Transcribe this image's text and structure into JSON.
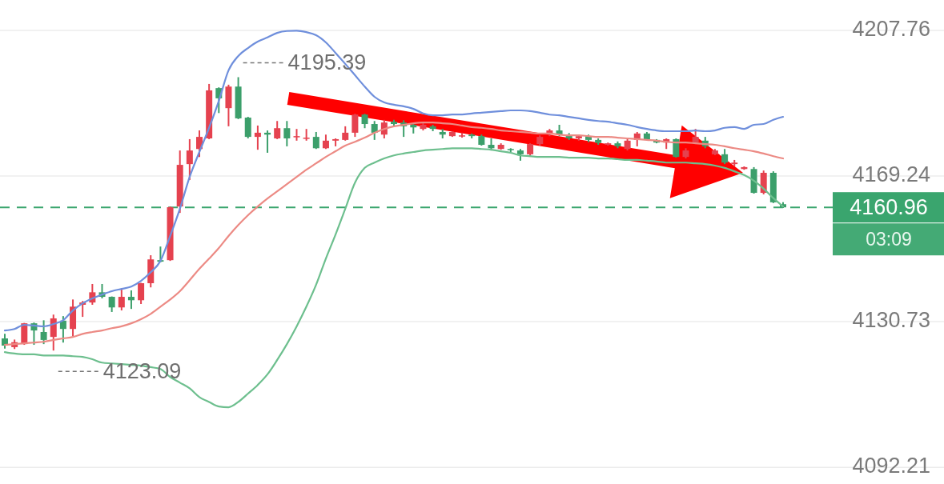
{
  "chart_data": {
    "type": "candlestick",
    "categories": [
      null,
      null,
      null,
      null,
      null,
      null,
      null,
      null,
      null,
      null,
      null,
      null,
      null,
      null,
      null,
      null,
      null,
      null,
      null,
      null,
      null,
      null,
      null,
      null,
      null,
      null,
      null,
      null,
      null,
      null,
      null,
      null,
      null,
      null,
      null,
      null,
      null,
      null,
      null,
      null,
      null,
      null,
      null,
      null,
      null,
      null,
      null,
      null,
      null,
      null,
      null,
      null,
      null,
      null,
      null,
      null,
      null,
      null,
      null,
      null,
      null,
      null,
      null,
      null,
      null,
      null,
      null,
      null,
      null,
      null,
      null,
      null,
      null,
      null,
      null,
      null,
      null,
      null,
      null,
      null,
      null
    ],
    "ohlc": [
      [
        4126.3,
        4127.5,
        4123.6,
        4124.4
      ],
      [
        4124.0,
        4126.0,
        4123.5,
        4125.3
      ],
      [
        4124.8,
        4130.4,
        4124.6,
        4130.3
      ],
      [
        4130.3,
        4130.5,
        4124.6,
        4128.4
      ],
      [
        4128.0,
        4131.1,
        4124.8,
        4125.9
      ],
      [
        4126.7,
        4132.6,
        4123.09,
        4131.6
      ],
      [
        4131.0,
        4132.2,
        4125.2,
        4128.8
      ],
      [
        4128.8,
        4136.6,
        4126.9,
        4134.7
      ],
      [
        4135.2,
        4136.2,
        4132.0,
        4135.8
      ],
      [
        4135.8,
        4140.7,
        4135.2,
        4138.5
      ],
      [
        4138.5,
        4140.7,
        4136.9,
        4137.3
      ],
      [
        4137.3,
        4137.4,
        4133.3,
        4134.5
      ],
      [
        4134.5,
        4139.4,
        4133.7,
        4137.3
      ],
      [
        4137.3,
        4139.0,
        4134.1,
        4136.4
      ],
      [
        4136.4,
        4141.0,
        4135.4,
        4140.9
      ],
      [
        4140.9,
        4148.3,
        4139.8,
        4147.2
      ],
      [
        4147.0,
        4150.6,
        4146.4,
        4146.6
      ],
      [
        4147.0,
        4161.2,
        4146.8,
        4161.0
      ],
      [
        4161.2,
        4176.0,
        4159.5,
        4172.2
      ],
      [
        4172.4,
        4179.0,
        4168.2,
        4176.0
      ],
      [
        4176.4,
        4181.3,
        4174.3,
        4179.6
      ],
      [
        4179.2,
        4193.6,
        4179.0,
        4191.9
      ],
      [
        4192.5,
        4192.7,
        4185.9,
        4189.8
      ],
      [
        4187.2,
        4193.4,
        4182.4,
        4192.9
      ],
      [
        4192.9,
        4195.39,
        4184.3,
        4184.5
      ],
      [
        4184.7,
        4184.9,
        4179.2,
        4179.6
      ],
      [
        4179.6,
        4182.6,
        4176.2,
        4180.7
      ],
      [
        4180.7,
        4181.3,
        4175.4,
        4180.2
      ],
      [
        4179.2,
        4183.8,
        4179.0,
        4181.9
      ],
      [
        4181.9,
        4183.8,
        4177.1,
        4179.2
      ],
      [
        4179.6,
        4181.7,
        4178.6,
        4179.8
      ],
      [
        4179.2,
        4181.7,
        4178.6,
        4179.4
      ],
      [
        4179.6,
        4180.9,
        4176.4,
        4176.6
      ],
      [
        4176.6,
        4180.2,
        4176.4,
        4178.6
      ],
      [
        4178.6,
        4179.2,
        4177.1,
        4179.0
      ],
      [
        4178.8,
        4182.4,
        4178.6,
        4180.7
      ],
      [
        4180.7,
        4185.7,
        4179.6,
        4185.5
      ],
      [
        4185.5,
        4185.7,
        4181.9,
        4183.0
      ],
      [
        4183.0,
        4183.8,
        4178.8,
        4180.7
      ],
      [
        4180.2,
        4184.1,
        4179.2,
        4183.4
      ],
      [
        4183.6,
        4184.1,
        4182.4,
        4183.0
      ],
      [
        4183.4,
        4184.0,
        4179.6,
        4182.4
      ],
      [
        4182.8,
        4183.0,
        4180.5,
        4182.1
      ],
      [
        4181.7,
        4183.2,
        4181.3,
        4182.8
      ],
      [
        4182.4,
        4182.8,
        4181.1,
        4181.7
      ],
      [
        4180.9,
        4181.7,
        4179.2,
        4180.2
      ],
      [
        4179.8,
        4181.1,
        4179.6,
        4180.9
      ],
      [
        4179.8,
        4180.7,
        4179.4,
        4180.0
      ],
      [
        4180.2,
        4180.5,
        4179.2,
        4179.8
      ],
      [
        4179.8,
        4180.2,
        4177.3,
        4177.5
      ],
      [
        4177.5,
        4179.2,
        4176.0,
        4176.6
      ],
      [
        4176.4,
        4177.9,
        4176.2,
        4177.5
      ],
      [
        4176.4,
        4176.6,
        4175.6,
        4176.2
      ],
      [
        4176.0,
        4176.4,
        4173.3,
        4175.0
      ],
      [
        4175.0,
        4177.9,
        4174.3,
        4177.7
      ],
      [
        4177.7,
        4180.0,
        4177.3,
        4179.6
      ],
      [
        4180.2,
        4181.7,
        4179.8,
        4181.3
      ],
      [
        4181.3,
        4182.8,
        4179.8,
        4180.2
      ],
      [
        4180.2,
        4180.6,
        4178.8,
        4179.2
      ],
      [
        4179.2,
        4180.2,
        4178.6,
        4179.8
      ],
      [
        4179.8,
        4180.2,
        4178.2,
        4178.8
      ],
      [
        4178.8,
        4179.2,
        4177.5,
        4178.0
      ],
      [
        4177.5,
        4178.1,
        4177.3,
        4177.9
      ],
      [
        4177.9,
        4178.4,
        4176.6,
        4177.1
      ],
      [
        4176.4,
        4179.0,
        4176.0,
        4178.6
      ],
      [
        4178.8,
        4180.9,
        4177.1,
        4180.5
      ],
      [
        4180.5,
        4180.9,
        4178.6,
        4178.8
      ],
      [
        4178.8,
        4179.0,
        4177.9,
        4178.1
      ],
      [
        4178.1,
        4179.2,
        4176.4,
        4179.0
      ],
      [
        4179.0,
        4179.2,
        4174.1,
        4174.3
      ],
      [
        4174.3,
        4176.6,
        4173.9,
        4176.0
      ],
      [
        4178.1,
        4181.7,
        4177.9,
        4179.6
      ],
      [
        4178.6,
        4179.6,
        4176.6,
        4177.1
      ],
      [
        4175.0,
        4176.4,
        4174.8,
        4176.0
      ],
      [
        4175.0,
        4176.4,
        4172.4,
        4172.8
      ],
      [
        4172.4,
        4173.5,
        4171.8,
        4172.8
      ],
      [
        4171.1,
        4171.8,
        4170.9,
        4171.6
      ],
      [
        4171.1,
        4171.6,
        4164.6,
        4164.8
      ],
      [
        4164.8,
        4170.7,
        4164.4,
        4170.1
      ],
      [
        4170.1,
        4170.5,
        4162.1,
        4162.3
      ],
      [
        4161.8,
        4162.3,
        4160.8,
        4160.96
      ]
    ],
    "colors": [
      "#3c9f6b",
      "#e5424f",
      "#e5424f",
      "#3c9f6b",
      "#3c9f6b",
      "#e5424f",
      "#3c9f6b",
      "#e5424f",
      "#e5424f",
      "#e5424f",
      "#3c9f6b",
      "#3c9f6b",
      "#e5424f",
      "#3c9f6b",
      "#e5424f",
      "#e5424f",
      "#3c9f6b",
      "#e5424f",
      "#e5424f",
      "#e5424f",
      "#e5424f",
      "#e5424f",
      "#3c9f6b",
      "#e5424f",
      "#3c9f6b",
      "#3c9f6b",
      "#e5424f",
      "#3c9f6b",
      "#e5424f",
      "#3c9f6b",
      "#e5424f",
      "#e5424f",
      "#3c9f6b",
      "#e5424f",
      "#e5424f",
      "#e5424f",
      "#e5424f",
      "#3c9f6b",
      "#3c9f6b",
      "#e5424f",
      "#3c9f6b",
      "#3c9f6b",
      "#3c9f6b",
      "#e5424f",
      "#3c9f6b",
      "#3c9f6b",
      "#e5424f",
      "#e5424f",
      "#3c9f6b",
      "#3c9f6b",
      "#3c9f6b",
      "#e5424f",
      "#3c9f6b",
      "#3c9f6b",
      "#e5424f",
      "#e5424f",
      "#e5424f",
      "#3c9f6b",
      "#3c9f6b",
      "#e5424f",
      "#3c9f6b",
      "#3c9f6b",
      "#e5424f",
      "#3c9f6b",
      "#e5424f",
      "#e5424f",
      "#3c9f6b",
      "#3c9f6b",
      "#e5424f",
      "#3c9f6b",
      "#e5424f",
      "#e5424f",
      "#3c9f6b",
      "#e5424f",
      "#3c9f6b",
      "#e5424f",
      "#e5424f",
      "#3c9f6b",
      "#e5424f",
      "#3c9f6b",
      "#3c9f6b"
    ],
    "series": [
      {
        "type": "line",
        "color": "#6f8fdc",
        "values": [
          4128.4,
          4128.8,
          4129.9,
          4129.7,
          4129.5,
          4130.1,
          4131.1,
          4133.7,
          4135.6,
          4136.9,
          4137.9,
          4138.8,
          4139.4,
          4140.0,
          4141.5,
          4143.8,
          4146.8,
          4153.4,
          4160.6,
          4169.0,
          4175.6,
          4182.0,
          4189.1,
          4197.2,
          4201.0,
          4203.1,
          4204.8,
          4205.9,
          4207.1,
          4207.6,
          4207.7,
          4207.3,
          4206.5,
          4204.6,
          4201.8,
          4198.9,
          4195.9,
          4192.9,
          4190.2,
          4188.7,
          4188.1,
          4187.7,
          4187.0,
          4185.8,
          4185.3,
          4185.3,
          4185.5,
          4185.5,
          4185.8,
          4186.0,
          4186.2,
          4186.4,
          4186.6,
          4186.6,
          4186.4,
          4186.0,
          4185.5,
          4185.3,
          4184.9,
          4184.5,
          4184.1,
          4183.8,
          4183.6,
          4183.2,
          4182.8,
          4182.2,
          4181.7,
          4181.3,
          4181.1,
          4181.1,
          4181.1,
          4181.3,
          4181.1,
          4181.3,
          4182.0,
          4182.2,
          4181.7,
          4182.8,
          4183.0,
          4184.1,
          4184.9
        ]
      },
      {
        "type": "line",
        "color": "#ec8a84",
        "values": [
          4124.6,
          4124.8,
          4125.0,
          4125.2,
          4125.4,
          4125.9,
          4126.3,
          4126.7,
          4127.5,
          4128.0,
          4128.4,
          4129.0,
          4129.5,
          4130.3,
          4131.4,
          4132.8,
          4134.7,
          4136.6,
          4138.8,
          4141.7,
          4144.7,
          4147.4,
          4150.2,
          4153.4,
          4156.3,
          4158.9,
          4161.2,
          4163.3,
          4165.2,
          4167.1,
          4169.0,
          4170.9,
          4172.6,
          4174.3,
          4175.8,
          4177.3,
          4178.3,
          4179.4,
          4180.7,
          4181.7,
          4182.4,
          4182.8,
          4183.2,
          4183.4,
          4183.4,
          4183.2,
          4183.0,
          4182.6,
          4182.2,
          4182.0,
          4181.7,
          4181.3,
          4181.1,
          4180.9,
          4180.7,
          4180.5,
          4180.5,
          4180.2,
          4180.0,
          4180.0,
          4179.8,
          4179.6,
          4179.6,
          4179.4,
          4179.2,
          4179.0,
          4178.8,
          4178.6,
          4178.3,
          4178.1,
          4178.1,
          4177.9,
          4177.7,
          4177.5,
          4177.1,
          4176.6,
          4176.2,
          4175.8,
          4175.2,
          4174.5,
          4173.9
        ]
      },
      {
        "type": "line",
        "color": "#6dbf8e",
        "values": [
          4122.7,
          4122.3,
          4122.1,
          4122.1,
          4121.8,
          4121.8,
          4121.8,
          4121.6,
          4121.4,
          4120.8,
          4119.9,
          4119.7,
          4119.5,
          4119.3,
          4119.1,
          4118.7,
          4118.2,
          4116.1,
          4114.6,
          4113.1,
          4110.8,
          4109.5,
          4108.3,
          4108.1,
          4109.5,
          4111.7,
          4114.0,
          4116.8,
          4120.6,
          4124.8,
          4129.5,
          4134.7,
          4140.5,
          4147.4,
          4153.8,
          4160.6,
          4167.5,
          4171.4,
          4172.8,
          4173.9,
          4174.7,
          4175.2,
          4175.6,
          4176.0,
          4176.2,
          4176.4,
          4176.6,
          4176.6,
          4176.6,
          4176.4,
          4176.2,
          4175.8,
          4175.4,
          4174.7,
          4174.5,
          4174.3,
          4174.3,
          4174.3,
          4174.1,
          4174.1,
          4174.1,
          4173.9,
          4173.9,
          4173.7,
          4173.5,
          4173.5,
          4173.3,
          4173.1,
          4172.8,
          4172.8,
          4172.8,
          4172.6,
          4172.4,
          4172.0,
          4171.4,
          4170.5,
          4169.5,
          4168.0,
          4165.9,
          4163.4,
          4161.2
        ]
      }
    ],
    "ylim": [
      4087.8,
      4215.8
    ],
    "yticks": [
      4207.76,
      4169.24,
      4130.73,
      4092.21
    ],
    "grid": "y",
    "ref_lines": [
      {
        "axis": "y",
        "value": 4160.96,
        "label": "4160.96",
        "color": "#3aa56e",
        "line_style": "dashed"
      }
    ],
    "annotations": [
      "4195.39",
      "4123.09",
      "03:09"
    ]
  }
}
